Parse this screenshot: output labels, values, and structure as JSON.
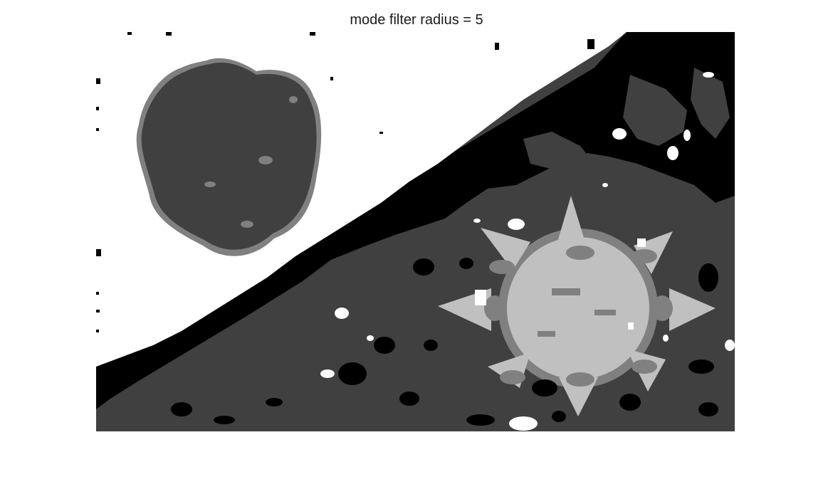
{
  "figure": {
    "title": "mode filter radius = 5"
  },
  "palette": {
    "white": "#ffffff",
    "black": "#000000",
    "dark_gray": "#404040",
    "mid_gray": "#808080",
    "light_gray": "#c0c0c0"
  }
}
